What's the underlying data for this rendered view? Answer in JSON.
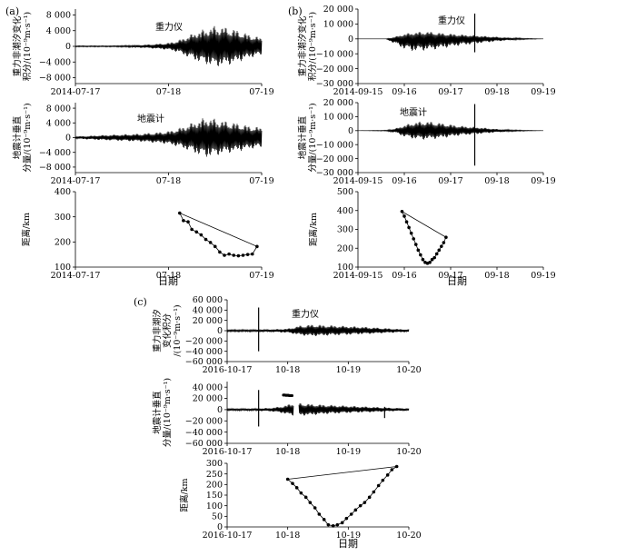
{
  "figure": {
    "panel_labels": [
      "(a)",
      "(b)",
      "(c)"
    ],
    "xlabel": "日期",
    "dist_ylabel": "距离/km"
  },
  "chart_data": [
    {
      "id": "a-gravity",
      "panel": "a",
      "type": "line",
      "annotation": "重力仪",
      "ylabel_lines": [
        "重力非潮汐变化",
        "积分/(10⁻⁹m·s⁻¹)"
      ],
      "yticks": [
        8000,
        4000,
        0,
        -4000,
        -8000
      ],
      "ytick_labels": [
        "8 000",
        "4 000",
        "0",
        "−4 000",
        "−8 000"
      ],
      "ylim": [
        -9500,
        9500
      ],
      "xticks": [
        0,
        1,
        2
      ],
      "xtick_labels": [
        "2014-07-17",
        "07-18",
        "07-19"
      ],
      "xlim": [
        0,
        2
      ],
      "envelope": {
        "x": [
          0,
          0.4,
          0.6,
          0.8,
          1.0,
          1.1,
          1.2,
          1.3,
          1.4,
          1.5,
          1.6,
          1.7,
          1.8,
          1.9,
          2.0
        ],
        "upper": [
          150,
          150,
          250,
          500,
          900,
          1500,
          2600,
          3800,
          4500,
          5300,
          5000,
          4500,
          3600,
          2800,
          2200
        ],
        "lower": [
          -150,
          -150,
          -250,
          -500,
          -900,
          -1500,
          -2700,
          -3800,
          -4600,
          -5300,
          -5000,
          -4500,
          -3600,
          -2800,
          -2300
        ]
      }
    },
    {
      "id": "a-seismometer",
      "panel": "a",
      "type": "line",
      "annotation": "地震计",
      "ylabel_lines": [
        "地震计垂直",
        "分量/(10⁻⁹m·s⁻¹)"
      ],
      "yticks": [
        8000,
        4000,
        0,
        -4000,
        -8000
      ],
      "ytick_labels": [
        "8 000",
        "4 000",
        "0",
        "−4 000",
        "−8 000"
      ],
      "ylim": [
        -9500,
        9500
      ],
      "xticks": [
        0,
        1,
        2
      ],
      "xtick_labels": [
        "2014-07-17",
        "07-18",
        "07-19"
      ],
      "xlim": [
        0,
        2
      ],
      "envelope": {
        "x": [
          0,
          0.3,
          0.5,
          0.7,
          0.9,
          1.0,
          1.1,
          1.2,
          1.3,
          1.4,
          1.5,
          1.6,
          1.7,
          1.8,
          1.9,
          2.0
        ],
        "upper": [
          300,
          700,
          900,
          1100,
          1500,
          1800,
          2500,
          3500,
          4600,
          5600,
          5200,
          4600,
          4200,
          3600,
          3100,
          2800
        ],
        "lower": [
          -300,
          -700,
          -900,
          -1100,
          -1500,
          -1800,
          -2500,
          -3400,
          -4500,
          -5400,
          -5000,
          -4400,
          -4000,
          -3500,
          -3000,
          -2800
        ]
      }
    },
    {
      "id": "a-distance",
      "panel": "a",
      "type": "line",
      "ylabel_lines": [
        "距离/km"
      ],
      "yticks": [
        400,
        300,
        200,
        100
      ],
      "ytick_labels": [
        "400",
        "300",
        "200",
        "100"
      ],
      "ylim": [
        100,
        400
      ],
      "xticks": [
        0,
        1,
        2
      ],
      "xtick_labels": [
        "2014-07-17",
        "07-18",
        "07-19"
      ],
      "xlim": [
        0,
        2
      ],
      "x": [
        1.12,
        1.16,
        1.21,
        1.25,
        1.3,
        1.35,
        1.4,
        1.45,
        1.5,
        1.55,
        1.6,
        1.65,
        1.7,
        1.75,
        1.8,
        1.85,
        1.9,
        1.95
      ],
      "y": [
        315,
        285,
        280,
        250,
        240,
        228,
        210,
        198,
        182,
        160,
        147,
        152,
        147,
        145,
        147,
        150,
        152,
        182
      ],
      "closed": true
    },
    {
      "id": "b-gravity",
      "panel": "b",
      "type": "line",
      "annotation": "重力仪",
      "ylabel_lines": [
        "重力非潮汐变化",
        "积分/(10⁻⁹m·s⁻¹)"
      ],
      "yticks": [
        20000,
        10000,
        0,
        -10000,
        -20000,
        -30000
      ],
      "ytick_labels": [
        "20 000",
        "10 000",
        "0",
        "−10 000",
        "−20 000",
        "−30 000"
      ],
      "ylim": [
        -30000,
        20000
      ],
      "xticks": [
        0,
        1,
        2,
        3,
        4
      ],
      "xtick_labels": [
        "2014-09-15",
        "09-16",
        "09-17",
        "09-18",
        "09-19"
      ],
      "xlim": [
        0,
        4
      ],
      "envelope": {
        "x": [
          0,
          0.6,
          0.8,
          1.0,
          1.2,
          1.4,
          1.6,
          1.8,
          2.0,
          2.2,
          2.4,
          2.6,
          2.8,
          3.0,
          3.3,
          3.6,
          4.0
        ],
        "upper": [
          0,
          0,
          1500,
          3500,
          4500,
          5000,
          4800,
          4000,
          3500,
          3000,
          2700,
          2300,
          1800,
          1400,
          800,
          400,
          0
        ],
        "lower": [
          0,
          0,
          -3500,
          -7000,
          -8500,
          -8000,
          -7500,
          -6500,
          -5500,
          -4500,
          -3800,
          -3000,
          -2300,
          -1700,
          -900,
          -400,
          0
        ]
      },
      "spikes": [
        {
          "x": 2.52,
          "top": 17000,
          "bottom": -9000
        }
      ]
    },
    {
      "id": "b-seismometer",
      "panel": "b",
      "type": "line",
      "annotation": "地震计",
      "ylabel_lines": [
        "地震计垂直",
        "分量/(10⁻⁹m·s⁻¹)"
      ],
      "yticks": [
        20000,
        10000,
        0,
        -10000,
        -20000,
        -30000
      ],
      "ytick_labels": [
        "20 000",
        "10 000",
        "0",
        "−10 000",
        "−20 000",
        "−30 000"
      ],
      "ylim": [
        -30000,
        20000
      ],
      "xticks": [
        0,
        1,
        2,
        3,
        4
      ],
      "xtick_labels": [
        "2014-09-15",
        "09-16",
        "09-17",
        "09-18",
        "09-19"
      ],
      "xlim": [
        0,
        4
      ],
      "envelope": {
        "x": [
          0,
          0.6,
          0.8,
          1.0,
          1.2,
          1.4,
          1.6,
          1.8,
          2.0,
          2.2,
          2.4,
          2.6,
          2.8,
          3.0,
          3.3,
          3.6,
          4.0
        ],
        "upper": [
          0,
          300,
          1500,
          4000,
          6000,
          6800,
          6500,
          5500,
          4500,
          3500,
          3000,
          2500,
          1800,
          1200,
          600,
          300,
          0
        ],
        "lower": [
          0,
          -300,
          -1500,
          -4500,
          -6000,
          -6500,
          -6200,
          -5500,
          -4500,
          -3500,
          -3000,
          -2400,
          -1800,
          -1200,
          -600,
          -300,
          0
        ]
      },
      "spikes": [
        {
          "x": 2.52,
          "top": 19000,
          "bottom": -25000
        }
      ]
    },
    {
      "id": "b-distance",
      "panel": "b",
      "type": "line",
      "ylabel_lines": [
        "距离/km"
      ],
      "yticks": [
        500,
        400,
        300,
        200,
        100
      ],
      "ytick_labels": [
        "500",
        "400",
        "300",
        "200",
        "100"
      ],
      "ylim": [
        100,
        500
      ],
      "xticks": [
        0,
        1,
        2,
        3,
        4
      ],
      "xtick_labels": [
        "2014-09-15",
        "09-16",
        "09-17",
        "09-18",
        "09-19"
      ],
      "xlim": [
        0,
        4
      ],
      "x": [
        0.95,
        1.0,
        1.05,
        1.1,
        1.15,
        1.2,
        1.25,
        1.3,
        1.35,
        1.4,
        1.45,
        1.5,
        1.55,
        1.6,
        1.65,
        1.7,
        1.75,
        1.8,
        1.85,
        1.9
      ],
      "y": [
        395,
        370,
        340,
        310,
        280,
        250,
        220,
        190,
        165,
        140,
        125,
        120,
        125,
        140,
        150,
        170,
        190,
        210,
        230,
        258
      ],
      "closed": true
    },
    {
      "id": "c-gravity",
      "panel": "c",
      "type": "line",
      "annotation": "重力仪",
      "ylabel_lines": [
        "重力非潮汐",
        "变化积分",
        "/(10⁻⁹m·s⁻¹)"
      ],
      "yticks": [
        60000,
        40000,
        20000,
        0,
        -20000,
        -40000,
        -60000
      ],
      "ytick_labels": [
        "60 000",
        "40 000",
        "20 000",
        "0",
        "−20 000",
        "−40 000",
        "−60 000"
      ],
      "ylim": [
        -60000,
        60000
      ],
      "xticks": [
        0,
        1,
        2,
        3
      ],
      "xtick_labels": [
        "2016-10-17",
        "10-18",
        "10-19",
        "10-20"
      ],
      "xlim": [
        0,
        3
      ],
      "envelope": {
        "x": [
          0,
          0.4,
          0.7,
          1.0,
          1.2,
          1.4,
          1.6,
          1.8,
          2.0,
          2.2,
          2.4,
          2.6,
          2.8,
          3.0
        ],
        "upper": [
          2000,
          2000,
          2500,
          4000,
          10000,
          12000,
          11000,
          10000,
          9000,
          8000,
          6500,
          5000,
          3500,
          2500
        ],
        "lower": [
          -2000,
          -2000,
          -2500,
          -4000,
          -9000,
          -11000,
          -10000,
          -9000,
          -8000,
          -7000,
          -6000,
          -4500,
          -3500,
          -2500
        ]
      },
      "spikes": [
        {
          "x": 0.52,
          "top": 45000,
          "bottom": -40000
        }
      ]
    },
    {
      "id": "c-seismometer",
      "panel": "c",
      "type": "line",
      "ylabel_lines": [
        "地震计垂直",
        "分量/(10⁻⁹m·s⁻¹)"
      ],
      "yticks": [
        40000,
        20000,
        0,
        -20000,
        -40000,
        -60000
      ],
      "ytick_labels": [
        "40 000",
        "20 000",
        "0",
        "−20 000",
        "−40 000",
        "−60 000"
      ],
      "ylim": [
        -60000,
        50000
      ],
      "xticks": [
        0,
        1,
        2,
        3
      ],
      "xtick_labels": [
        "2016-10-17",
        "10-18",
        "10-19",
        "10-20"
      ],
      "xlim": [
        0,
        3
      ],
      "envelope": {
        "x": [
          0,
          0.4,
          0.7,
          0.9,
          1.0,
          1.1,
          1.2,
          1.4,
          1.6,
          1.8,
          2.0,
          2.2,
          2.4,
          2.6,
          2.8,
          3.0
        ],
        "upper": [
          2000,
          2000,
          3000,
          6000,
          9000,
          12000,
          12000,
          10000,
          9000,
          8000,
          7000,
          6000,
          5000,
          4000,
          3000,
          2000
        ],
        "lower": [
          -2000,
          -2000,
          -3000,
          -6000,
          -9000,
          -11000,
          -11000,
          -10000,
          -8000,
          -7000,
          -6000,
          -5000,
          -4500,
          -3500,
          -2500,
          -2000
        ]
      },
      "gap": [
        1.1,
        1.18
      ],
      "spikes": [
        {
          "x": 0.52,
          "top": 35000,
          "bottom": -30000
        },
        {
          "x": 2.6,
          "top": 5000,
          "bottom": -15000
        }
      ],
      "markers": {
        "x": [
          0.93,
          0.95,
          0.97,
          0.99,
          1.01,
          1.03,
          1.05,
          1.07
        ],
        "y": [
          26000,
          26000,
          25500,
          25500,
          25500,
          25000,
          25000,
          25000
        ]
      }
    },
    {
      "id": "c-distance",
      "panel": "c",
      "type": "line",
      "ylabel_lines": [
        "距离/km"
      ],
      "yticks": [
        300,
        250,
        200,
        150,
        100,
        50,
        0
      ],
      "ytick_labels": [
        "300",
        "250",
        "200",
        "150",
        "100",
        "50",
        "0"
      ],
      "ylim": [
        0,
        300
      ],
      "xticks": [
        0,
        1,
        2,
        3
      ],
      "xtick_labels": [
        "2016-10-17",
        "10-18",
        "10-19",
        "10-20"
      ],
      "xlim": [
        0,
        3
      ],
      "x": [
        1.0,
        1.08,
        1.15,
        1.22,
        1.3,
        1.37,
        1.45,
        1.52,
        1.6,
        1.67,
        1.75,
        1.82,
        1.9,
        1.97,
        2.05,
        2.12,
        2.2,
        2.27,
        2.35,
        2.42,
        2.5,
        2.57,
        2.65,
        2.72,
        2.8
      ],
      "y": [
        225,
        205,
        185,
        160,
        140,
        115,
        90,
        60,
        35,
        10,
        5,
        10,
        20,
        40,
        60,
        80,
        100,
        115,
        140,
        165,
        195,
        220,
        245,
        270,
        285
      ],
      "closed": true
    }
  ]
}
